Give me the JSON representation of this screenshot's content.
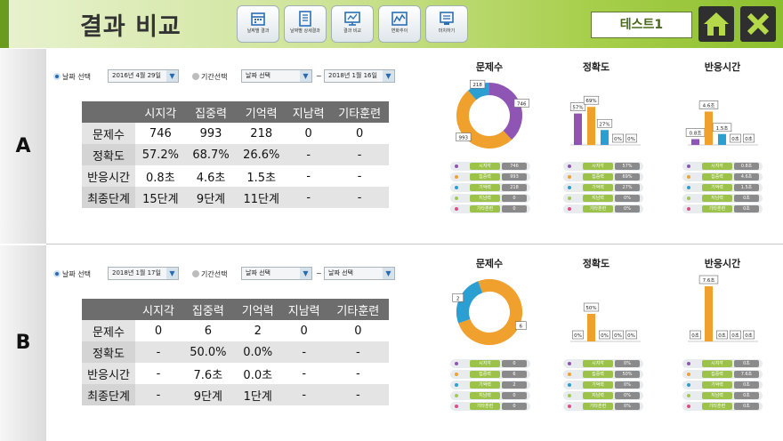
{
  "header": {
    "title": "결과 비교",
    "user_label": "테스트1",
    "nav": [
      {
        "label": "날짜별 결과",
        "icon": "calendar-icon"
      },
      {
        "label": "날짜별 상세결과",
        "icon": "document-icon"
      },
      {
        "label": "결과 비교",
        "icon": "monitor-icon"
      },
      {
        "label": "변화추이",
        "icon": "trend-chart-icon"
      },
      {
        "label": "마치하기",
        "icon": "exit-icon"
      }
    ]
  },
  "colors": {
    "violet": "#8e55b5",
    "orange": "#f0a02c",
    "blue": "#2b9ed2",
    "green": "#a3c84f",
    "pink": "#e24a86",
    "headerGreen": "#8cbf2e",
    "tableHeader": "#6d6d6d"
  },
  "categories": [
    "시지각",
    "집중력",
    "기억력",
    "지남력",
    "기타훈련"
  ],
  "chart_titles": [
    "문제수",
    "정확도",
    "반응시간"
  ],
  "row_headers": [
    "문제수",
    "정확도",
    "반응시간",
    "최종단계"
  ],
  "sections": [
    {
      "label": "A",
      "date_radio": "날짜 선택",
      "date_value": "2016년 4월 29일",
      "period_radio": "기간선택",
      "period_from": "날짜 선택",
      "period_sep": "~",
      "period_to": "2018년 1월 16일",
      "table": [
        [
          "746",
          "993",
          "218",
          "0",
          "0"
        ],
        [
          "57.2%",
          "68.7%",
          "26.6%",
          "-",
          "-"
        ],
        [
          "0.8초",
          "4.6초",
          "1.5초",
          "-",
          "-"
        ],
        [
          "15단계",
          "9단계",
          "11단계",
          "-",
          "-"
        ]
      ],
      "chart_data": [
        {
          "type": "pie",
          "title": "문제수",
          "categories": [
            "시지각",
            "집중력",
            "기억력",
            "지남력",
            "기타훈련"
          ],
          "values": [
            746,
            993,
            218,
            0,
            0
          ],
          "labels": [
            "746",
            "993",
            "218",
            "",
            ""
          ]
        },
        {
          "type": "bar",
          "title": "정확도",
          "categories": [
            "시지각",
            "집중력",
            "기억력",
            "지남력",
            "기타훈련"
          ],
          "values": [
            57,
            69,
            27,
            0,
            0
          ],
          "labels": [
            "57%",
            "69%",
            "27%",
            "0%",
            "0%"
          ],
          "ylim": [
            0,
            100
          ]
        },
        {
          "type": "bar",
          "title": "반응시간",
          "categories": [
            "시지각",
            "집중력",
            "기억력",
            "지남력",
            "기타훈련"
          ],
          "values": [
            0.8,
            4.6,
            1.5,
            0,
            0
          ],
          "labels": [
            "0.8초",
            "4.6초",
            "1.5초",
            "0초",
            "0초"
          ],
          "ylim": [
            0,
            7.6
          ]
        }
      ],
      "legend_values": [
        "746",
        "993",
        "218",
        "0",
        "0"
      ],
      "legend_values_acc": [
        "57%",
        "69%",
        "27%",
        "0%",
        "0%"
      ],
      "legend_values_rt": [
        "0.8초",
        "4.6초",
        "1.5초",
        "0초",
        "0초"
      ]
    },
    {
      "label": "B",
      "date_radio": "날짜 선택",
      "date_value": "2018년 1월 17일",
      "period_radio": "기간선택",
      "period_from": "날짜 선택",
      "period_sep": "~",
      "period_to": "날짜 선택",
      "table": [
        [
          "0",
          "6",
          "2",
          "0",
          "0"
        ],
        [
          "-",
          "50.0%",
          "0.0%",
          "-",
          "-"
        ],
        [
          "-",
          "7.6초",
          "0.0초",
          "-",
          "-"
        ],
        [
          "-",
          "9단계",
          "1단계",
          "-",
          "-"
        ]
      ],
      "chart_data": [
        {
          "type": "pie",
          "title": "문제수",
          "categories": [
            "시지각",
            "집중력",
            "기억력",
            "지남력",
            "기타훈련"
          ],
          "values": [
            0,
            6,
            2,
            0,
            0
          ],
          "labels": [
            "",
            "6",
            "2",
            "",
            ""
          ]
        },
        {
          "type": "bar",
          "title": "정확도",
          "categories": [
            "시지각",
            "집중력",
            "기억력",
            "지남력",
            "기타훈련"
          ],
          "values": [
            0,
            50,
            0,
            0,
            0
          ],
          "labels": [
            "0%",
            "50%",
            "0%",
            "0%",
            "0%"
          ],
          "ylim": [
            0,
            100
          ]
        },
        {
          "type": "bar",
          "title": "반응시간",
          "categories": [
            "시지각",
            "집중력",
            "기억력",
            "지남력",
            "기타훈련"
          ],
          "values": [
            0,
            7.6,
            0,
            0,
            0
          ],
          "labels": [
            "0초",
            "7.6초",
            "0초",
            "0초",
            "0초"
          ],
          "ylim": [
            0,
            7.6
          ]
        }
      ],
      "legend_values": [
        "0",
        "6",
        "2",
        "0",
        "0"
      ],
      "legend_values_acc": [
        "0%",
        "50%",
        "0%",
        "0%",
        "0%"
      ],
      "legend_values_rt": [
        "0초",
        "7.6초",
        "0초",
        "0초",
        "0초"
      ]
    }
  ]
}
